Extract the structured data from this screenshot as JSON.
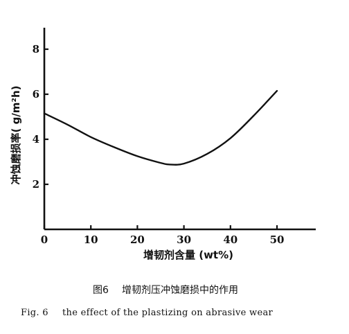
{
  "chart_data": {
    "type": "line",
    "title": "",
    "xlabel": "增韧剂含量 (wt%)",
    "ylabel": "冲蚀磨损率( g/m²h)",
    "xlim": [
      0,
      50
    ],
    "ylim": [
      0,
      8
    ],
    "x_ticks": [
      0,
      10,
      20,
      30,
      40,
      50
    ],
    "y_ticks": [
      2,
      4,
      6,
      8
    ],
    "grid": false,
    "series": [
      {
        "x": [
          0,
          5,
          10,
          15,
          20,
          25,
          27,
          30,
          35,
          40,
          45,
          50
        ],
        "values": [
          5.15,
          4.65,
          4.1,
          3.65,
          3.25,
          2.95,
          2.88,
          2.92,
          3.35,
          4.05,
          5.05,
          6.15
        ]
      }
    ]
  },
  "caption": {
    "cn_label": "图6",
    "cn_text": "增韧剂压冲蚀磨损中的作用",
    "en_label": "Fig. 6",
    "en_text": "the effect of the plastizing on abrasive wear"
  }
}
